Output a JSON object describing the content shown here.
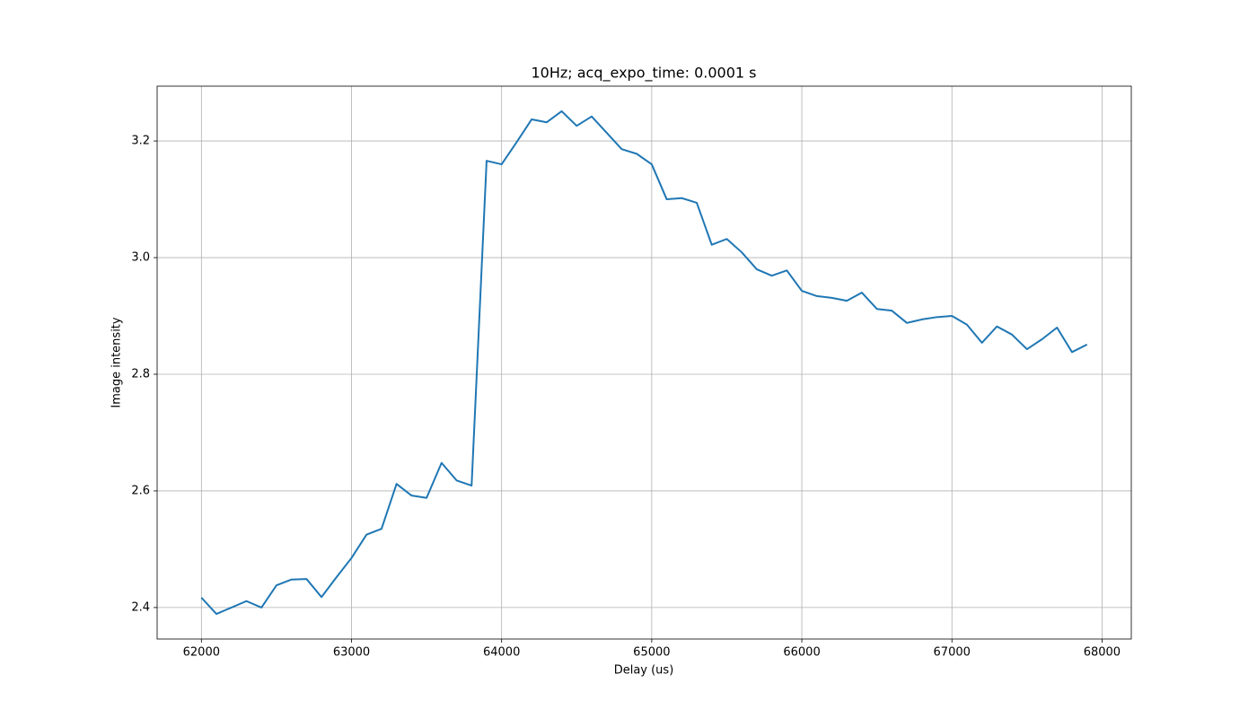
{
  "chart_data": {
    "type": "line",
    "title": "10Hz; acq_expo_time: 0.0001 s",
    "xlabel": "Delay (us)",
    "ylabel": "Image intensity",
    "x": [
      62000,
      62100,
      62200,
      62300,
      62400,
      62500,
      62600,
      62700,
      62800,
      62900,
      63000,
      63100,
      63200,
      63300,
      63400,
      63500,
      63600,
      63700,
      63800,
      63900,
      64000,
      64100,
      64200,
      64300,
      64400,
      64500,
      64600,
      64700,
      64800,
      64900,
      65000,
      65100,
      65200,
      65300,
      65400,
      65500,
      65600,
      65700,
      65800,
      65900,
      66000,
      66100,
      66200,
      66300,
      66400,
      66500,
      66600,
      66700,
      66800,
      66900,
      67000,
      67100,
      67200,
      67300,
      67400,
      67500,
      67600,
      67700,
      67800,
      67900
    ],
    "values": [
      2.417,
      2.389,
      2.4,
      2.411,
      2.4,
      2.438,
      2.448,
      2.449,
      2.418,
      2.452,
      2.485,
      2.525,
      2.535,
      2.612,
      2.592,
      2.588,
      2.648,
      2.618,
      2.609,
      3.166,
      3.16,
      3.198,
      3.237,
      3.232,
      3.251,
      3.226,
      3.242,
      3.214,
      3.186,
      3.178,
      3.16,
      3.1,
      3.102,
      3.094,
      3.022,
      3.032,
      3.009,
      2.98,
      2.969,
      2.978,
      2.943,
      2.934,
      2.931,
      2.926,
      2.94,
      2.912,
      2.909,
      2.888,
      2.894,
      2.898,
      2.9,
      2.885,
      2.854,
      2.882,
      2.868,
      2.843,
      2.86,
      2.88,
      2.838,
      2.851
    ],
    "color": "#1f77b4",
    "xlim": [
      61705,
      68195
    ],
    "ylim": [
      2.346,
      3.294
    ],
    "xticks": [
      62000,
      63000,
      64000,
      65000,
      66000,
      67000,
      68000
    ],
    "yticks": [
      2.4,
      2.6,
      2.8,
      {
        "value": 3,
        "label": "3.0"
      },
      3.2
    ],
    "grid": true
  }
}
